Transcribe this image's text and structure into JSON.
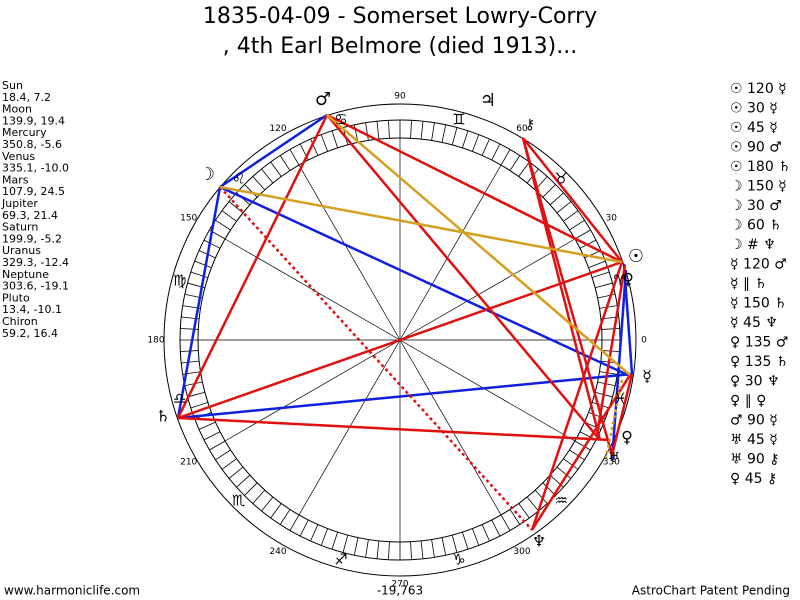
{
  "header": {
    "title_lines": [
      "1835-04-09 - Somerset Lowry-Corry",
      ", 4th Earl Belmore (died 1913)..."
    ]
  },
  "planets": [
    {
      "name": "Sun",
      "position": "18.4, 7.2"
    },
    {
      "name": "Moon",
      "position": "139.9, 19.4"
    },
    {
      "name": "Mercury",
      "position": "350.8, -5.6"
    },
    {
      "name": "Venus",
      "position": "335.1, -10.0"
    },
    {
      "name": "Mars",
      "position": "107.9, 24.5"
    },
    {
      "name": "Jupiter",
      "position": "69.3, 21.4"
    },
    {
      "name": "Saturn",
      "position": "199.9, -5.2"
    },
    {
      "name": "Uranus",
      "position": "329.3, -12.4"
    },
    {
      "name": "Neptune",
      "position": "303.6, -19.1"
    },
    {
      "name": "Pluto",
      "position": "13.4, -10.1"
    },
    {
      "name": "Chiron",
      "position": "59.2, 16.4"
    }
  ],
  "aspects": [
    "☉ 120 ☿",
    "☉ 30 ☿",
    "☉ 45 ☿",
    "☉ 90 ♂",
    "☉ 180 ♄",
    "☽ 150 ☿",
    "☽ 30 ♂",
    "☽ 60 ♄",
    "☽ # ♆",
    "☿ 120 ♂",
    "☿ ∥ ♄",
    "☿ 150 ♄",
    "☿ 45 ♆",
    "♀ 135 ♂",
    "♀ 135 ♄",
    "♀ 30 ♆",
    "♀ ∥ ♀",
    "♂ 90 ☿",
    "♅ 45 ☿",
    "♅ 90 ⚷",
    "♀ 45 ⚷"
  ],
  "wheel": {
    "degree_labels": [
      "0",
      "30",
      "60",
      "90",
      "120",
      "150",
      "180",
      "210",
      "240",
      "270",
      "300",
      "330"
    ],
    "zodiac": [
      "♈",
      "♉",
      "♊",
      "♋",
      "♌",
      "♍",
      "♎",
      "♏",
      "♐",
      "♑",
      "♒",
      "♓"
    ],
    "planet_glyphs": [
      "♂",
      "☽",
      "♃",
      "⚷",
      "☉",
      "♀",
      "☿",
      "♄",
      "♀",
      "♅",
      "♆"
    ]
  },
  "footer": {
    "site": "www.harmoniclife.com",
    "score": "-19,763",
    "notice": "AstroChart Patent Pending"
  }
}
